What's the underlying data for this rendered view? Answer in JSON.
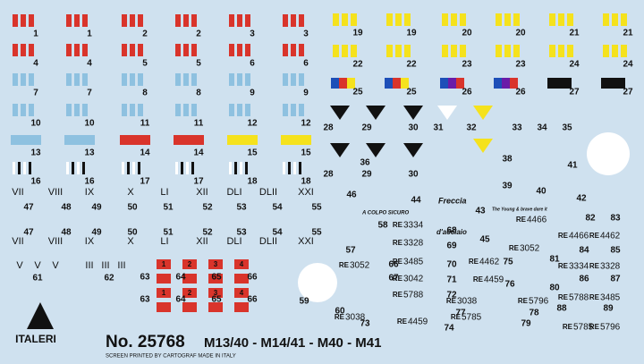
{
  "grid_left": [
    "1",
    "1",
    "2",
    "2",
    "3",
    "3",
    "4",
    "4",
    "5",
    "5",
    "6",
    "6",
    "7",
    "7",
    "8",
    "8",
    "9",
    "9",
    "10",
    "10",
    "11",
    "11",
    "12",
    "12",
    "13",
    "13",
    "14",
    "14",
    "15",
    "15",
    "16",
    "16",
    "17",
    "17",
    "18",
    "18"
  ],
  "grid_right": [
    "19",
    "19",
    "20",
    "20",
    "21",
    "21",
    "22",
    "22",
    "23",
    "23",
    "24",
    "24",
    "25",
    "25",
    "26",
    "26",
    "27",
    "27"
  ],
  "roman": [
    "VII",
    "VIII",
    "IX",
    "X",
    "LI",
    "XII",
    "DLI",
    "DLII",
    "XXI",
    "VII",
    "VIII",
    "IX",
    "X",
    "LI",
    "XII",
    "DLI",
    "DLII",
    "XXI"
  ],
  "roman_numbers": [
    "47",
    "48",
    "49",
    "50",
    "51",
    "52",
    "53",
    "54",
    "55",
    "47",
    "48",
    "49",
    "50",
    "51",
    "52",
    "53",
    "54",
    "55"
  ],
  "small_roman": [
    "V",
    "V",
    "V",
    "III",
    "III",
    "III"
  ],
  "other_numbers": [
    "28",
    "29",
    "30",
    "31",
    "32",
    "33",
    "34",
    "35",
    "36",
    "38",
    "41",
    "39",
    "40",
    "42",
    "28",
    "29",
    "30",
    "46",
    "44",
    "43",
    "82",
    "83",
    "58",
    "68",
    "45",
    "57",
    "69",
    "84",
    "85",
    "86",
    "87",
    "70",
    "75",
    "81",
    "80",
    "76",
    "71",
    "66",
    "67",
    "72",
    "77",
    "78",
    "79",
    "74",
    "73",
    "60",
    "63",
    "64",
    "65",
    "66",
    "63",
    "64",
    "65",
    "66",
    "59",
    "88",
    "89",
    "61",
    "62"
  ],
  "squares": [
    "1",
    "2",
    "3",
    "4",
    "1",
    "2",
    "3",
    "4"
  ],
  "plates": [
    {
      "prefix": "RE",
      "number": "3334"
    },
    {
      "prefix": "RE",
      "number": "3328"
    },
    {
      "prefix": "RE",
      "number": "3485"
    },
    {
      "prefix": "RE",
      "number": "3042"
    },
    {
      "prefix": "RE",
      "number": "5788"
    },
    {
      "prefix": "RE",
      "number": "3038"
    },
    {
      "prefix": "RE",
      "number": "4459"
    },
    {
      "prefix": "RE",
      "number": "5785"
    },
    {
      "prefix": "RE",
      "number": "5796"
    },
    {
      "prefix": "RE",
      "number": "4462"
    },
    {
      "prefix": "RE",
      "number": "4459"
    },
    {
      "prefix": "RE",
      "number": "3052"
    },
    {
      "prefix": "RE",
      "number": "3038"
    },
    {
      "prefix": "RE",
      "number": "3052"
    },
    {
      "prefix": "RE",
      "number": "4466"
    },
    {
      "prefix": "RE",
      "number": "4462"
    },
    {
      "prefix": "RE",
      "number": "3334"
    },
    {
      "prefix": "RE",
      "number": "3328"
    },
    {
      "prefix": "RE",
      "number": "5788"
    },
    {
      "prefix": "RE",
      "number": "3485"
    },
    {
      "prefix": "RE",
      "number": "5785"
    },
    {
      "prefix": "RE",
      "number": "5796"
    },
    {
      "prefix": "RE",
      "number": "4466"
    }
  ],
  "mottos": [
    "Freccia",
    "d'acciaio",
    "A COLPO SICURO",
    "The Young & brave dare it"
  ],
  "footer": {
    "brand": "ITALERI",
    "number": "No. 25768",
    "models": "M13/40 - M14/41 - M40 - M41",
    "credit": "SCREEN PRINTED BY CARTOGRAF MADE IN ITALY"
  }
}
